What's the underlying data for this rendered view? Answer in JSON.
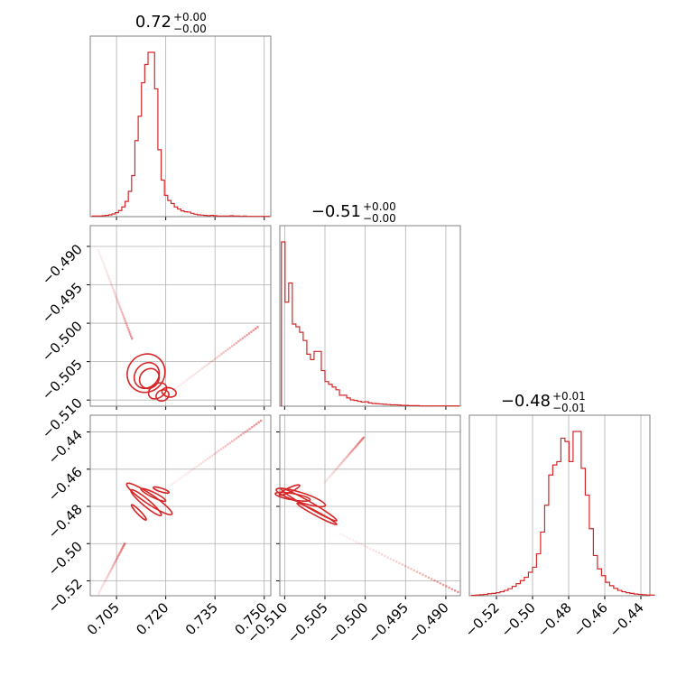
{
  "figure": {
    "type": "corner",
    "color": "#d62728"
  },
  "chart_data": [
    {
      "type": "histogram",
      "panel": "hist-p1",
      "title": {
        "value": "0.72",
        "upper": "+0.00",
        "lower": "−0.00"
      },
      "xlim": [
        0.697,
        0.752
      ],
      "xticks": [
        0.705,
        0.72,
        0.735,
        0.75
      ],
      "bin_edges_start": 0.6976,
      "bin_width": 0.001,
      "counts": [
        0.2,
        0.2,
        0.2,
        0.3,
        0.4,
        0.6,
        0.9,
        1.3,
        2.0,
        3.2,
        5.0,
        8.3,
        13.5,
        25,
        33,
        44,
        50,
        54,
        54,
        42,
        22,
        12,
        7,
        5.3,
        4.3,
        3.2,
        2.5,
        1.9,
        1.6,
        1.5,
        1.1,
        0.8,
        0.6,
        0.5,
        0.4,
        0.3,
        0.4,
        0.3,
        0.2,
        0.2,
        0.2,
        0.2,
        0.3,
        0.2,
        0.2,
        0.1,
        0.2,
        0.1,
        0.1,
        0.1,
        0.1,
        0.1,
        0.1,
        0.1
      ]
    },
    {
      "type": "histogram",
      "panel": "hist-p2",
      "title": {
        "value": "−0.51",
        "upper": "+0.00",
        "lower": "−0.00"
      },
      "xlim": [
        -0.5106,
        -0.4882
      ],
      "xticks": [
        -0.51,
        -0.505,
        -0.5,
        -0.495,
        -0.49
      ],
      "bin_edges_start": -0.5104,
      "bin_width": 0.00045,
      "counts": [
        60,
        38,
        45,
        30,
        29,
        27,
        24,
        19,
        17,
        20,
        20,
        13,
        9,
        8,
        7,
        6,
        4,
        4,
        3,
        2.3,
        2.1,
        1.8,
        1.5,
        1.6,
        1.2,
        1.0,
        0.9,
        0.8,
        0.7,
        0.6,
        0.5,
        0.5,
        0.4,
        0.3,
        0.3,
        0.2,
        0.2,
        0.2,
        0.1,
        0.1,
        0.1,
        0.1,
        0.1,
        0.1,
        0.1,
        0.1,
        0.1,
        0.1,
        0.1
      ]
    },
    {
      "type": "histogram",
      "panel": "hist-p3",
      "title": {
        "value": "−0.48",
        "upper": "+0.01",
        "lower": "−0.01"
      },
      "xlim": [
        -0.535,
        -0.435
      ],
      "xticks": [
        -0.52,
        -0.5,
        -0.48,
        -0.46,
        -0.44
      ],
      "bin_edges_start": -0.5338,
      "bin_width": 0.00225,
      "counts": [
        0.1,
        0.2,
        0.3,
        0.4,
        0.6,
        0.7,
        0.9,
        1.2,
        1.6,
        2.1,
        2.8,
        3.6,
        4.5,
        5.5,
        7,
        8.5,
        12.5,
        19,
        27,
        36,
        39,
        40,
        47,
        46,
        40,
        49,
        49,
        38,
        30,
        20,
        12,
        8,
        6,
        4,
        3,
        2.2,
        1.6,
        1.2,
        0.9,
        0.7,
        0.5,
        0.4,
        0.3,
        0.2,
        0.2
      ]
    },
    {
      "type": "scatter",
      "panel": "joint-p1-p2",
      "xlim": [
        0.697,
        0.752
      ],
      "ylim": [
        -0.5108,
        -0.4873
      ],
      "yticks": [
        -0.49,
        -0.495,
        -0.5,
        -0.505,
        -0.51
      ],
      "trails": [
        {
          "from": [
            0.6995,
            -0.4905
          ],
          "to": [
            0.7097,
            -0.502
          ]
        },
        {
          "from": [
            0.722,
            -0.5088
          ],
          "to": [
            0.748,
            -0.5005
          ]
        }
      ],
      "contours": [
        {
          "center": [
            0.714,
            -0.5065
          ],
          "rx": 0.006,
          "ry": 0.0024,
          "angle": -52
        },
        {
          "center": [
            0.7142,
            -0.5068
          ],
          "rx": 0.0042,
          "ry": 0.0015,
          "angle": -50
        },
        {
          "center": [
            0.715,
            -0.5072
          ],
          "rx": 0.0032,
          "ry": 0.0012,
          "angle": -48
        },
        {
          "center": [
            0.7175,
            -0.5088
          ],
          "rx": 0.003,
          "ry": 0.0009,
          "angle": -35
        },
        {
          "center": [
            0.719,
            -0.5094
          ],
          "rx": 0.002,
          "ry": 0.0007,
          "angle": -25
        },
        {
          "center": [
            0.721,
            -0.509
          ],
          "rx": 0.0022,
          "ry": 0.0006,
          "angle": 12
        }
      ]
    },
    {
      "type": "scatter",
      "panel": "joint-p1-p3",
      "xlim": [
        0.697,
        0.752
      ],
      "ylim": [
        -0.528,
        -0.431
      ],
      "yticks": [
        -0.44,
        -0.46,
        -0.48,
        -0.5,
        -0.52
      ],
      "trails": [
        {
          "from": [
            0.6995,
            -0.527
          ],
          "to": [
            0.7075,
            -0.5
          ]
        },
        {
          "from": [
            0.722,
            -0.468
          ],
          "to": [
            0.749,
            -0.434
          ]
        }
      ],
      "contours": [
        {
          "center": [
            0.715,
            -0.476
          ],
          "rx": 0.0083,
          "ry": 0.0026,
          "angle": 34
        },
        {
          "center": [
            0.714,
            -0.478
          ],
          "rx": 0.006,
          "ry": 0.0019,
          "angle": 40
        },
        {
          "center": [
            0.7162,
            -0.4738
          ],
          "rx": 0.0042,
          "ry": 0.0013,
          "angle": 26
        },
        {
          "center": [
            0.7118,
            -0.4832
          ],
          "rx": 0.0032,
          "ry": 0.001,
          "angle": 46
        },
        {
          "center": [
            0.7186,
            -0.4712
          ],
          "rx": 0.0025,
          "ry": 0.0008,
          "angle": 18
        }
      ]
    },
    {
      "type": "scatter",
      "panel": "joint-p2-p3",
      "xlim": [
        -0.5106,
        -0.4882
      ],
      "ylim": [
        -0.528,
        -0.431
      ],
      "trails": [
        {
          "from": [
            -0.505,
            -0.467
          ],
          "to": [
            -0.5002,
            -0.443
          ]
        },
        {
          "from": [
            -0.503,
            -0.495
          ],
          "to": [
            -0.4885,
            -0.526
          ]
        }
      ],
      "contours": [
        {
          "center": [
            -0.508,
            -0.4752
          ],
          "rx": 0.0032,
          "ry": 0.0026,
          "angle": 18
        },
        {
          "center": [
            -0.509,
            -0.4748
          ],
          "rx": 0.0022,
          "ry": 0.0017,
          "angle": 10
        },
        {
          "center": [
            -0.507,
            -0.479
          ],
          "rx": 0.004,
          "ry": 0.0016,
          "angle": 30
        },
        {
          "center": [
            -0.5094,
            -0.4712
          ],
          "rx": 0.0014,
          "ry": 0.0012,
          "angle": -25
        },
        {
          "center": [
            -0.506,
            -0.484
          ],
          "rx": 0.0028,
          "ry": 0.0011,
          "angle": 28
        }
      ]
    }
  ]
}
